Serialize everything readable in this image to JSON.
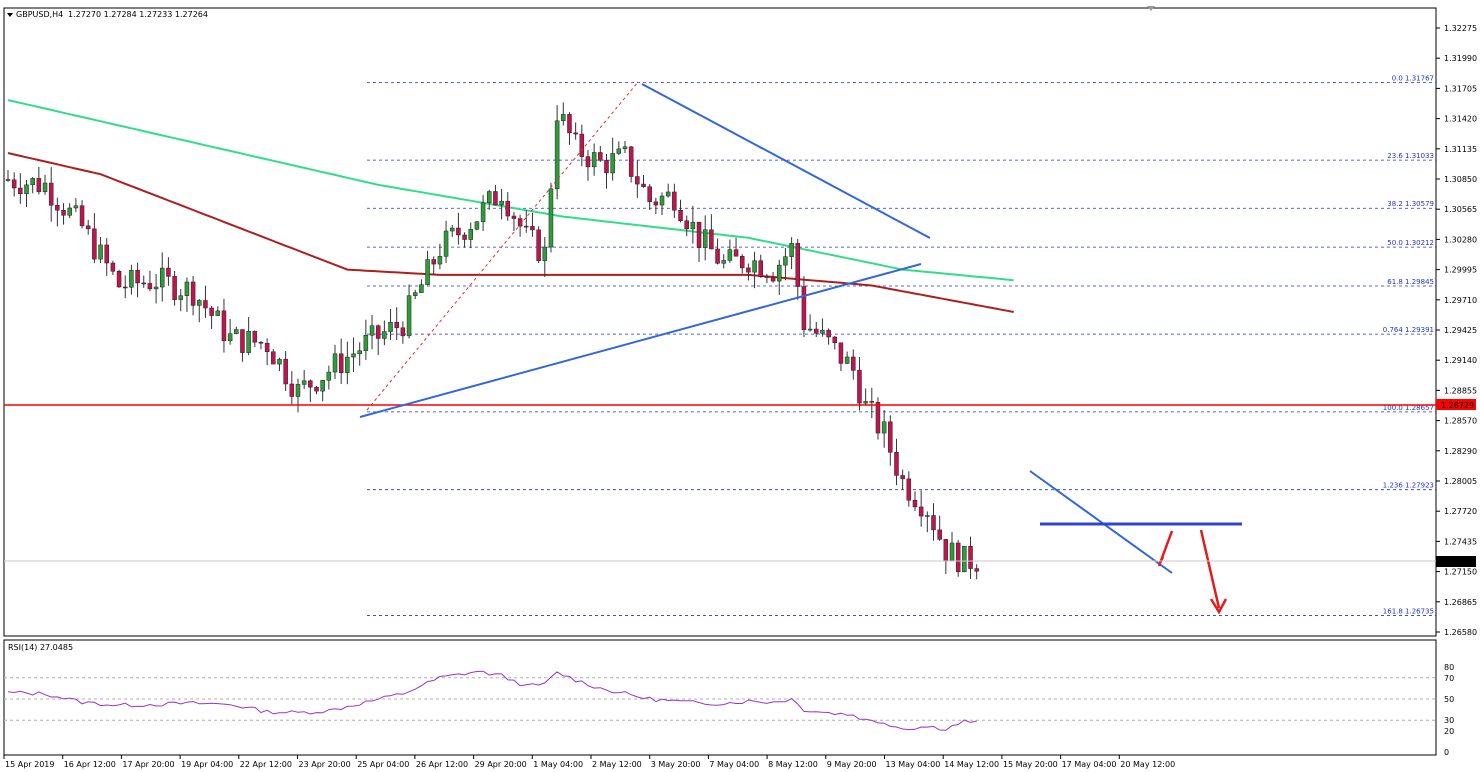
{
  "header": {
    "symbol": "GBPUSD,H4",
    "ohlc": "1.27270 1.27284 1.27233 1.27264"
  },
  "rsi": {
    "label": "RSI(14) 27.0485",
    "levels": [
      "80",
      "70",
      "50",
      "30",
      "20",
      "0"
    ]
  },
  "colors": {
    "up": "#2e9c3a",
    "down": "#c0144f",
    "ma_fast": "#ad1f1f",
    "ma_slow": "#33dd88",
    "fib": "#2233cc",
    "trendline": "#3366dd",
    "support": "#ff0000",
    "rsi_line": "#9933cc",
    "arrow": "#e51b1b"
  },
  "chart_data": {
    "type": "candlestick",
    "symbol": "GBPUSD",
    "timeframe": "H4",
    "ylim": [
      1.2658,
      1.3228
    ],
    "y_ticks": [
      "1.32275",
      "1.31990",
      "1.31705",
      "1.31420",
      "1.31135",
      "1.30850",
      "1.30565",
      "1.30280",
      "1.29995",
      "1.29710",
      "1.29425",
      "1.29140",
      "1.28855",
      "1.28570",
      "1.28290",
      "1.28005",
      "1.27720",
      "1.27435",
      "1.27150",
      "1.26865",
      "1.26580"
    ],
    "x_ticks": [
      "15 Apr 2019",
      "16 Apr 12:00",
      "17 Apr 20:00",
      "19 Apr 04:00",
      "22 Apr 12:00",
      "23 Apr 20:00",
      "25 Apr 04:00",
      "26 Apr 12:00",
      "29 Apr 20:00",
      "1 May 04:00",
      "2 May 12:00",
      "3 May 20:00",
      "7 May 04:00",
      "8 May 12:00",
      "9 May 20:00",
      "13 May 04:00",
      "14 May 12:00",
      "15 May 20:00",
      "17 May 04:00",
      "20 May 12:00"
    ],
    "current_price": "1.27264",
    "support_level": {
      "price": 1.28729,
      "label": "1.28729"
    },
    "fib_levels": [
      {
        "label": "0.0 1.31767",
        "price": 1.31767
      },
      {
        "label": "23.6 1.31033",
        "price": 1.31033
      },
      {
        "label": "38.2 1.30579",
        "price": 1.30579
      },
      {
        "label": "50.0 1.30212",
        "price": 1.30212
      },
      {
        "label": "61.8 1.29845",
        "price": 1.29845
      },
      {
        "label": "0.764 1.29391",
        "price": 1.29391
      },
      {
        "label": "100.0 1.28657",
        "price": 1.28657
      },
      {
        "label": "1.236 1.27923",
        "price": 1.27923
      },
      {
        "label": "161.8 1.26735",
        "price": 1.26735
      }
    ],
    "close_path": [
      [
        0,
        1.3085
      ],
      [
        6,
        1.308
      ],
      [
        12,
        1.304
      ],
      [
        18,
        1.2985
      ],
      [
        24,
        1.299
      ],
      [
        30,
        1.298
      ],
      [
        36,
        1.2935
      ],
      [
        42,
        1.293
      ],
      [
        47,
        1.2885
      ],
      [
        52,
        1.2905
      ],
      [
        58,
        1.293
      ],
      [
        64,
        1.295
      ],
      [
        70,
        1.302
      ],
      [
        76,
        1.305
      ],
      [
        80,
        1.3075
      ],
      [
        84,
        1.303
      ],
      [
        87,
        1.3015
      ],
      [
        89,
        1.315
      ],
      [
        92,
        1.3115
      ],
      [
        96,
        1.31
      ],
      [
        100,
        1.3105
      ],
      [
        104,
        1.3065
      ],
      [
        108,
        1.307
      ],
      [
        112,
        1.303
      ],
      [
        116,
        1.3005
      ],
      [
        120,
        1.301
      ],
      [
        124,
        1.3
      ],
      [
        127,
        1.302
      ],
      [
        129,
        1.295
      ],
      [
        133,
        1.293
      ],
      [
        137,
        1.2905
      ],
      [
        139,
        1.287
      ],
      [
        142,
        1.2845
      ],
      [
        145,
        1.28
      ],
      [
        149,
        1.2775
      ],
      [
        152,
        1.2735
      ],
      [
        155,
        1.2725
      ],
      [
        157,
        1.2726
      ]
    ],
    "series": [
      {
        "name": "MA slow",
        "points": [
          [
            0,
            1.316
          ],
          [
            30,
            1.312
          ],
          [
            60,
            1.308
          ],
          [
            90,
            1.305
          ],
          [
            120,
            1.303
          ],
          [
            145,
            1.3
          ],
          [
            163,
            1.299
          ]
        ]
      },
      {
        "name": "MA fast",
        "points": [
          [
            0,
            1.311
          ],
          [
            15,
            1.309
          ],
          [
            35,
            1.3045
          ],
          [
            55,
            1.3
          ],
          [
            70,
            1.2995
          ],
          [
            90,
            1.2995
          ],
          [
            120,
            1.2995
          ],
          [
            140,
            1.2985
          ],
          [
            163,
            1.296
          ]
        ]
      }
    ],
    "rsi_path": [
      [
        0,
        56
      ],
      [
        6,
        55
      ],
      [
        12,
        47
      ],
      [
        18,
        44
      ],
      [
        24,
        45
      ],
      [
        30,
        46
      ],
      [
        36,
        45
      ],
      [
        42,
        38
      ],
      [
        47,
        37
      ],
      [
        52,
        39
      ],
      [
        58,
        47
      ],
      [
        64,
        55
      ],
      [
        70,
        70
      ],
      [
        76,
        76
      ],
      [
        80,
        72
      ],
      [
        84,
        62
      ],
      [
        87,
        64
      ],
      [
        89,
        75
      ],
      [
        92,
        68
      ],
      [
        96,
        60
      ],
      [
        100,
        55
      ],
      [
        104,
        50
      ],
      [
        108,
        48
      ],
      [
        112,
        46
      ],
      [
        116,
        46
      ],
      [
        120,
        48
      ],
      [
        124,
        47
      ],
      [
        127,
        50
      ],
      [
        129,
        40
      ],
      [
        133,
        37
      ],
      [
        137,
        35
      ],
      [
        139,
        30
      ],
      [
        142,
        28
      ],
      [
        145,
        22
      ],
      [
        149,
        24
      ],
      [
        152,
        22
      ],
      [
        155,
        29
      ],
      [
        157,
        28
      ]
    ]
  }
}
